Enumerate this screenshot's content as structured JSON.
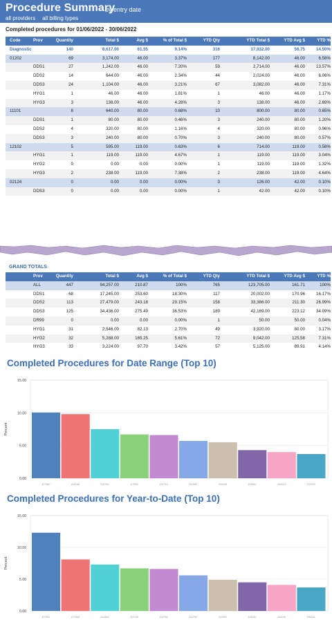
{
  "header": {
    "title": "Procedure Summary",
    "subtitle": "by entry date",
    "filter_providers": "all providers",
    "filter_billing": "all billing types"
  },
  "range": {
    "label": "Completed procedures for 01/06/2022 - 30/06/2022"
  },
  "columns": [
    "Code",
    "Prov",
    "Quantity",
    "Total $",
    "Avg $",
    "% of Total $",
    "YTD Qty",
    "YTD Total $",
    "YTD Avg $",
    "YTD %"
  ],
  "detail_rows": [
    {
      "type": "category",
      "code": "Diagnostic",
      "prov": "",
      "qty": "140",
      "total": "8,617.00",
      "avg": "61.55",
      "pct": "9.14%",
      "ytd_qty": "316",
      "ytd_total": "17,932.00",
      "ytd_avg": "56.75",
      "ytd_pct": "14.50%"
    },
    {
      "type": "group",
      "code": "01202",
      "prov": "",
      "qty": "69",
      "total": "3,174.00",
      "avg": "46.00",
      "pct": "3.37%",
      "ytd_qty": "177",
      "ytd_total": "8,142.00",
      "ytd_avg": "46.00",
      "ytd_pct": "6.58%"
    },
    {
      "type": "item",
      "code": "",
      "prov": "DDS1",
      "qty": "27",
      "total": "1,242.00",
      "avg": "46.00",
      "pct": "7.20%",
      "ytd_qty": "59",
      "ytd_total": "2,714.00",
      "ytd_avg": "46.00",
      "ytd_pct": "13.57%"
    },
    {
      "type": "item",
      "code": "",
      "prov": "DDS2",
      "qty": "14",
      "total": "644.00",
      "avg": "46.00",
      "pct": "2.34%",
      "ytd_qty": "44",
      "ytd_total": "2,024.00",
      "ytd_avg": "46.00",
      "ytd_pct": "6.06%"
    },
    {
      "type": "item",
      "code": "",
      "prov": "DDS3",
      "qty": "24",
      "total": "1,104.00",
      "avg": "46.00",
      "pct": "3.21%",
      "ytd_qty": "67",
      "ytd_total": "3,082.00",
      "ytd_avg": "46.00",
      "ytd_pct": "7.31%"
    },
    {
      "type": "item",
      "code": "",
      "prov": "HYG1",
      "qty": "1",
      "total": "46.00",
      "avg": "46.00",
      "pct": "1.81%",
      "ytd_qty": "1",
      "ytd_total": "46.00",
      "ytd_avg": "46.00",
      "ytd_pct": "1.17%"
    },
    {
      "type": "item",
      "code": "",
      "prov": "HYG3",
      "qty": "3",
      "total": "138.00",
      "avg": "46.00",
      "pct": "4.28%",
      "ytd_qty": "3",
      "ytd_total": "138.00",
      "ytd_avg": "46.00",
      "ytd_pct": "2.69%"
    },
    {
      "type": "group",
      "code": "11101",
      "prov": "",
      "qty": "8",
      "total": "640.00",
      "avg": "80.00",
      "pct": "0.68%",
      "ytd_qty": "10",
      "ytd_total": "800.00",
      "ytd_avg": "80.00",
      "ytd_pct": "0.65%"
    },
    {
      "type": "item",
      "code": "",
      "prov": "DDS1",
      "qty": "1",
      "total": "80.00",
      "avg": "80.00",
      "pct": "0.46%",
      "ytd_qty": "3",
      "ytd_total": "240.00",
      "ytd_avg": "80.00",
      "ytd_pct": "1.20%"
    },
    {
      "type": "item",
      "code": "",
      "prov": "DDS2",
      "qty": "4",
      "total": "320.00",
      "avg": "80.00",
      "pct": "1.16%",
      "ytd_qty": "4",
      "ytd_total": "320.00",
      "ytd_avg": "80.00",
      "ytd_pct": "0.96%"
    },
    {
      "type": "item",
      "code": "",
      "prov": "DDS3",
      "qty": "3",
      "total": "240.00",
      "avg": "80.00",
      "pct": "0.70%",
      "ytd_qty": "3",
      "ytd_total": "240.00",
      "ytd_avg": "80.00",
      "ytd_pct": "0.57%"
    },
    {
      "type": "group",
      "code": "12102",
      "prov": "",
      "qty": "5",
      "total": "595.00",
      "avg": "119.00",
      "pct": "0.63%",
      "ytd_qty": "6",
      "ytd_total": "714.00",
      "ytd_avg": "119.00",
      "ytd_pct": "0.58%"
    },
    {
      "type": "item",
      "code": "",
      "prov": "HYG1",
      "qty": "1",
      "total": "119.00",
      "avg": "119.00",
      "pct": "4.67%",
      "ytd_qty": "1",
      "ytd_total": "119.00",
      "ytd_avg": "119.00",
      "ytd_pct": "3.04%"
    },
    {
      "type": "item",
      "code": "",
      "prov": "HYG2",
      "qty": "0",
      "total": "0.00",
      "avg": "0.00",
      "pct": "0.00%",
      "ytd_qty": "1",
      "ytd_total": "119.00",
      "ytd_avg": "119.00",
      "ytd_pct": "1.32%"
    },
    {
      "type": "item",
      "code": "",
      "prov": "HYG3",
      "qty": "2",
      "total": "238.00",
      "avg": "119.00",
      "pct": "7.38%",
      "ytd_qty": "2",
      "ytd_total": "238.00",
      "ytd_avg": "119.00",
      "ytd_pct": "4.64%"
    },
    {
      "type": "group",
      "code": "02124",
      "prov": "",
      "qty": "0",
      "total": "0.00",
      "avg": "0.00",
      "pct": "0.00%",
      "ytd_qty": "3",
      "ytd_total": "126.00",
      "ytd_avg": "42.00",
      "ytd_pct": "0.10%"
    },
    {
      "type": "item",
      "code": "",
      "prov": "DDS3",
      "qty": "0",
      "total": "0.00",
      "avg": "0.00",
      "pct": "0.00%",
      "ytd_qty": "1",
      "ytd_total": "42.00",
      "ytd_avg": "42.00",
      "ytd_pct": "0.10%"
    }
  ],
  "grand_totals": {
    "label": "GRAND TOTALS",
    "columns": [
      "",
      "Prov",
      "Quantity",
      "Total $",
      "Avg $",
      "% of Total $",
      "YTD Qty",
      "YTD Total $",
      "YTD Avg $",
      "YTD %"
    ],
    "rows": [
      {
        "prov": "ALL",
        "qty": "447",
        "total": "94,257.00",
        "avg": "210.87",
        "pct": "100%",
        "ytd_qty": "765",
        "ytd_total": "123,705.00",
        "ytd_avg": "161.71",
        "ytd_pct": "100%"
      },
      {
        "prov": "DDS1",
        "qty": "68",
        "total": "17,245.00",
        "avg": "253.60",
        "pct": "18.30%",
        "ytd_qty": "117",
        "ytd_total": "20,002.00",
        "ytd_avg": "170.96",
        "ytd_pct": "16.17%"
      },
      {
        "prov": "DDS2",
        "qty": "113",
        "total": "27,479.00",
        "avg": "243.18",
        "pct": "29.15%",
        "ytd_qty": "158",
        "ytd_total": "33,386.00",
        "ytd_avg": "211.30",
        "ytd_pct": "26.99%"
      },
      {
        "prov": "DDS3",
        "qty": "125",
        "total": "34,436.00",
        "avg": "275.49",
        "pct": "36.53%",
        "ytd_qty": "189",
        "ytd_total": "42,169.00",
        "ytd_avg": "223.12",
        "ytd_pct": "34.09%"
      },
      {
        "prov": "DR99",
        "qty": "0",
        "total": "0.00",
        "avg": "0.00",
        "pct": "0.00%",
        "ytd_qty": "1",
        "ytd_total": "50.00",
        "ytd_avg": "50.00",
        "ytd_pct": "0.04%"
      },
      {
        "prov": "HYG1",
        "qty": "31",
        "total": "2,546.00",
        "avg": "82.13",
        "pct": "2.70%",
        "ytd_qty": "49",
        "ytd_total": "3,920.00",
        "ytd_avg": "80.00",
        "ytd_pct": "3.17%"
      },
      {
        "prov": "HYG2",
        "qty": "32",
        "total": "5,288.00",
        "avg": "165.25",
        "pct": "5.61%",
        "ytd_qty": "72",
        "ytd_total": "9,042.00",
        "ytd_avg": "125.58",
        "ytd_pct": "7.31%"
      },
      {
        "prov": "HYG3",
        "qty": "33",
        "total": "3,224.00",
        "avg": "97.70",
        "pct": "3.42%",
        "ytd_qty": "57",
        "ytd_total": "5,125.00",
        "ytd_avg": "89.91",
        "ytd_pct": "4.14%"
      }
    ]
  },
  "colors": {
    "header_blue": "#4a78b8",
    "group_row": "#cfdcf0",
    "accent_text": "#3b6fb6",
    "bar_palette": [
      "#4f81bd",
      "#f07474",
      "#4fd1d6",
      "#8ad27a",
      "#c28ad0",
      "#84a9e6",
      "#cbbfae",
      "#8068a8",
      "#f6a5c4",
      "#4aa6c6"
    ]
  },
  "chart_data": [
    {
      "type": "bar",
      "title": "Completed Procedures for Date Range (Top 10)",
      "ylabel": "Percent",
      "ylim": [
        0,
        15
      ],
      "yticks": [
        "0.00",
        "5.00",
        "10.00",
        "15.00"
      ],
      "grid": true,
      "categories": [
        "D7960",
        "D4346",
        "D2750",
        "D7951",
        "D2740",
        "D2391",
        "D9243",
        "D3330",
        "D6241",
        "D2392"
      ],
      "values": [
        10.05,
        9.8,
        7.5,
        6.7,
        6.6,
        5.7,
        5.5,
        4.3,
        4.0,
        3.7
      ]
    },
    {
      "type": "bar",
      "title": "Completed Procedures for Year-to-Date (Top 10)",
      "ylabel": "Percent",
      "ylim": [
        0,
        15
      ],
      "yticks": [
        "0.00",
        "5.00",
        "10.00",
        "15.00"
      ],
      "grid": true,
      "categories": [
        "D7951",
        "D7960",
        "D4346",
        "D2740",
        "D2750",
        "D2750",
        "D2391",
        "D3230",
        "D6240",
        "D6241"
      ],
      "values": [
        12.3,
        8.1,
        7.3,
        6.7,
        6.6,
        5.6,
        4.9,
        4.5,
        4.1,
        3.7
      ]
    }
  ]
}
